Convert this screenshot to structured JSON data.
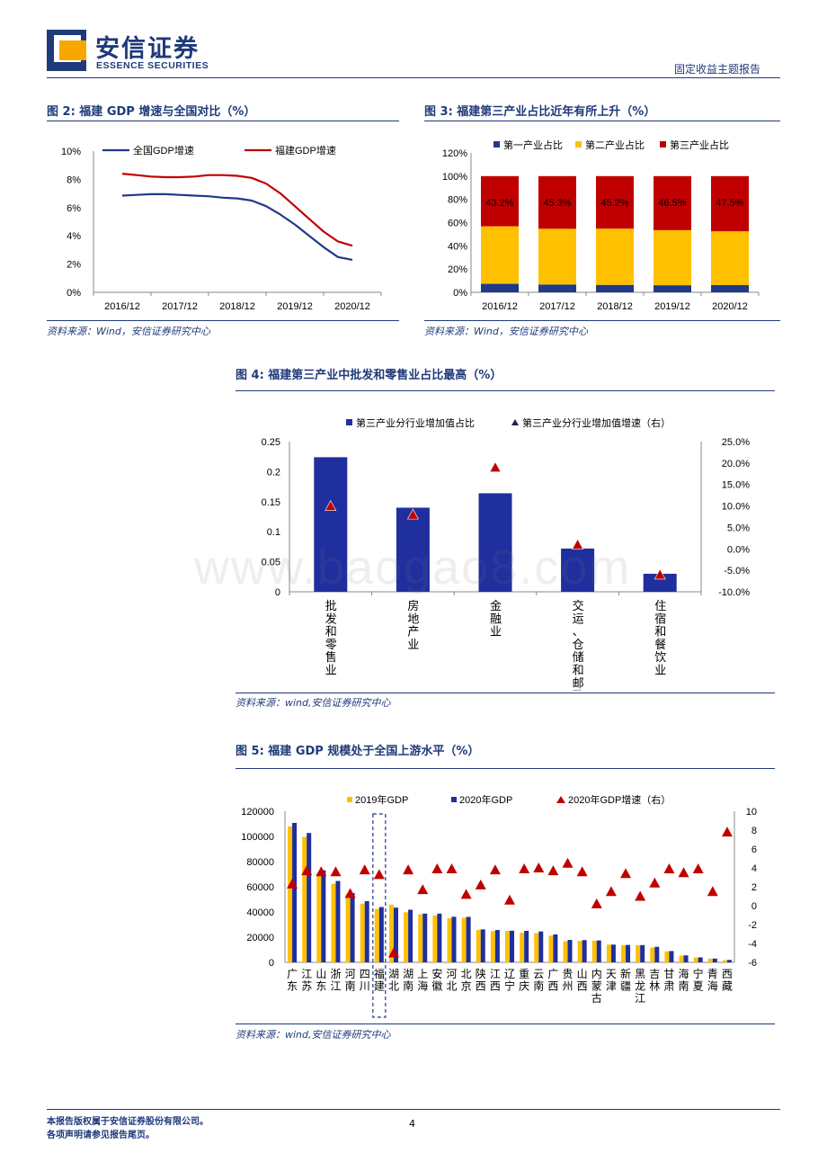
{
  "header": {
    "company_cn": "安信证券",
    "company_en": "ESSENCE SECURITIES",
    "report_type": "固定收益主题报告",
    "brand_color": "#1f3a7a",
    "accent_color": "#f6a800"
  },
  "figures": {
    "fig2": {
      "title": "图 2:  福建 GDP 增速与全国对比（%）",
      "source": "资料来源：Wind，安信证券研究中心"
    },
    "fig3": {
      "title": "图 3:  福建第三产业占比近年有所上升（%）",
      "source": "资料来源：Wind，安信证券研究中心"
    },
    "fig4": {
      "title": "图 4:  福建第三产业中批发和零售业占比最高（%）",
      "source": "资料来源：wind,安信证券研究中心"
    },
    "fig5": {
      "title": "图 5:  福建 GDP 规模处于全国上游水平（%）",
      "source": "资料来源：wind,安信证券研究中心"
    }
  },
  "watermark": "www.baogao8.com",
  "footer": {
    "line1": "本报告版权属于安信证券股份有限公司。",
    "line2": "各项声明请参见报告尾页。",
    "page": "4"
  },
  "chart_data": [
    {
      "id": "fig2",
      "type": "line",
      "categories": [
        "2016/12",
        "2017/12",
        "2018/12",
        "2019/12",
        "2020/12"
      ],
      "x": [
        0,
        0.25,
        0.5,
        0.75,
        1,
        1.25,
        1.5,
        1.75,
        2,
        2.25,
        2.5,
        2.75,
        3,
        3.25,
        3.5,
        3.75,
        4
      ],
      "series": [
        {
          "name": "全国GDP增速",
          "color": "#1f3a8a",
          "values": [
            6.85,
            6.9,
            6.95,
            6.95,
            6.9,
            6.85,
            6.8,
            6.7,
            6.65,
            6.5,
            6.1,
            5.5,
            4.8,
            4.0,
            3.2,
            2.5,
            2.3
          ]
        },
        {
          "name": "福建GDP增速",
          "color": "#c00000",
          "values": [
            8.4,
            8.3,
            8.2,
            8.15,
            8.15,
            8.2,
            8.3,
            8.3,
            8.25,
            8.1,
            7.7,
            7.0,
            6.1,
            5.2,
            4.3,
            3.6,
            3.3
          ]
        }
      ],
      "ylim": [
        0,
        10
      ],
      "yticks": [
        "0%",
        "2%",
        "4%",
        "6%",
        "8%",
        "10%"
      ],
      "legend": "top-left"
    },
    {
      "id": "fig3",
      "type": "bar",
      "stacked": true,
      "categories": [
        "2016/12",
        "2017/12",
        "2018/12",
        "2019/12",
        "2020/12"
      ],
      "series": [
        {
          "name": "第一产业占比",
          "color": "#1f3a8a",
          "values": [
            7.3,
            6.7,
            6.4,
            6.1,
            6.2
          ]
        },
        {
          "name": "第二产业占比",
          "color": "#ffc000",
          "values": [
            49.5,
            48.0,
            48.4,
            47.4,
            46.3
          ]
        },
        {
          "name": "第三产业占比",
          "color": "#c00000",
          "values": [
            43.2,
            45.3,
            45.2,
            46.5,
            47.5
          ]
        }
      ],
      "data_labels": [
        "43.2%",
        "45.3%",
        "45.2%",
        "46.5%",
        "47.5%"
      ],
      "ylim": [
        0,
        120
      ],
      "yticks": [
        "0%",
        "20%",
        "40%",
        "60%",
        "80%",
        "100%",
        "120%"
      ],
      "legend": "top"
    },
    {
      "id": "fig4",
      "type": "bar",
      "categories": [
        "批发和零售业",
        "房地产业",
        "金融业",
        "交运、仓储和邮政",
        "住宿和餐饮业"
      ],
      "series": [
        {
          "name": "第三产业分行业增加值占比",
          "color": "#1f2f9e",
          "axis": "left",
          "values": [
            0.224,
            0.14,
            0.164,
            0.072,
            0.03
          ]
        },
        {
          "name": "第三产业分行业增加值增速（右）",
          "color": "#c00000",
          "marker": "triangle",
          "axis": "right",
          "values": [
            10.0,
            8.0,
            19.0,
            1.0,
            -6.0
          ]
        }
      ],
      "ylim": [
        0,
        0.25
      ],
      "yticks": [
        "0",
        "0.05",
        "0.1",
        "0.15",
        "0.2",
        "0.25"
      ],
      "y2lim": [
        -10,
        25
      ],
      "y2ticks": [
        "-10.0%",
        "-5.0%",
        "0.0%",
        "5.0%",
        "10.0%",
        "15.0%",
        "20.0%",
        "25.0%"
      ],
      "legend": "top"
    },
    {
      "id": "fig5",
      "type": "bar",
      "categories": [
        "广东",
        "江苏",
        "山东",
        "浙江",
        "河南",
        "四川",
        "福建",
        "湖北",
        "湖南",
        "上海",
        "安徽",
        "河北",
        "北京",
        "陕西",
        "江西",
        "辽宁",
        "重庆",
        "云南",
        "广西",
        "贵州",
        "山西",
        "内蒙古",
        "天津",
        "新疆",
        "黑龙江",
        "吉林",
        "甘肃",
        "海南",
        "宁夏",
        "青海",
        "西藏"
      ],
      "series": [
        {
          "name": "2019年GDP",
          "color": "#ffc000",
          "axis": "left",
          "values": [
            107987,
            99631,
            71067,
            62352,
            54259,
            46616,
            42395,
            45828,
            39752,
            38155,
            37114,
            35104,
            35371,
            25793,
            24758,
            24909,
            23606,
            23224,
            21237,
            16769,
            17027,
            17213,
            14104,
            13597,
            13613,
            11727,
            8718,
            5309,
            3748,
            2966,
            1698
          ]
        },
        {
          "name": "2020年GDP",
          "color": "#1f2f9e",
          "axis": "left",
          "values": [
            110761,
            102719,
            73129,
            64613,
            54997,
            48599,
            43904,
            43443,
            41781,
            38701,
            38681,
            36207,
            36103,
            26182,
            25692,
            25115,
            25003,
            24522,
            22157,
            17827,
            17652,
            17360,
            14084,
            13798,
            13699,
            12311,
            8980,
            5532,
            3921,
            3006,
            1903
          ]
        },
        {
          "name": "2020年GDP增速（右）",
          "color": "#c00000",
          "marker": "triangle",
          "axis": "right",
          "values": [
            2.3,
            3.7,
            3.6,
            3.6,
            1.3,
            3.8,
            3.3,
            -5.0,
            3.8,
            1.7,
            3.9,
            3.9,
            1.2,
            2.2,
            3.8,
            0.6,
            3.9,
            4.0,
            3.7,
            4.5,
            3.6,
            0.2,
            1.5,
            3.4,
            1.0,
            2.4,
            3.9,
            3.5,
            3.9,
            1.5,
            7.8
          ]
        }
      ],
      "ylim": [
        0,
        120000
      ],
      "yticks": [
        "0",
        "20000",
        "40000",
        "60000",
        "80000",
        "100000",
        "120000"
      ],
      "y2lim": [
        -6,
        10
      ],
      "y2ticks": [
        "-6",
        "-4",
        "-2",
        "0",
        "2",
        "4",
        "6",
        "8",
        "10"
      ],
      "highlight": "福建",
      "legend": "top"
    }
  ]
}
